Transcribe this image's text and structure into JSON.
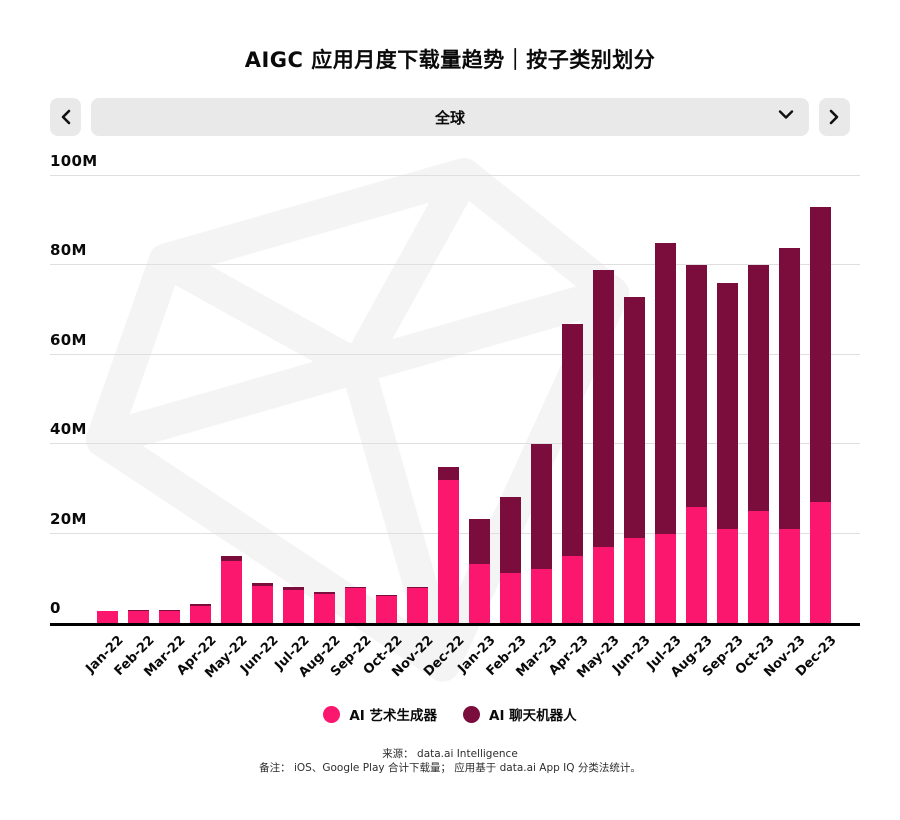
{
  "title": "AIGC 应用月度下载量趋势｜按子类别划分",
  "controls": {
    "region_value": "全球",
    "icons": [
      "chevron-left",
      "chevron-down",
      "chevron-right"
    ]
  },
  "chart_data": {
    "type": "bar",
    "stacked": true,
    "title": "AIGC 应用月度下载量趋势｜按子类别划分",
    "unit": "downloads (millions)",
    "ylim": [
      0,
      100
    ],
    "yticks": [
      "0",
      "20M",
      "40M",
      "60M",
      "80M",
      "100M"
    ],
    "grid": true,
    "legend_position": "bottom",
    "categories": [
      "Jan-22",
      "Feb-22",
      "Mar-22",
      "Apr-22",
      "May-22",
      "Jun-22",
      "Jul-22",
      "Aug-22",
      "Sep-22",
      "Oct-22",
      "Nov-22",
      "Dec-22",
      "Jan-23",
      "Feb-23",
      "Mar-23",
      "Apr-23",
      "May-23",
      "Jun-23",
      "Jul-23",
      "Aug-23",
      "Sep-23",
      "Oct-23",
      "Nov-23",
      "Dec-23"
    ],
    "series": [
      {
        "name": "AI 艺术生成器",
        "color": "#fb176e",
        "values": [
          2.7,
          2.6,
          2.6,
          3.7,
          13.8,
          8.2,
          7.4,
          6.5,
          7.9,
          6.0,
          7.9,
          32.0,
          13.2,
          11.1,
          12.0,
          15.0,
          17.0,
          19.0,
          20.0,
          26.0,
          21.0,
          25.0,
          21.0,
          27.0
        ]
      },
      {
        "name": "AI 聊天机器人",
        "color": "#7b0d3c",
        "values": [
          0.1,
          0.4,
          0.3,
          0.5,
          1.2,
          0.7,
          0.6,
          0.5,
          0.2,
          0.2,
          0.2,
          3.0,
          10.0,
          17.0,
          28.0,
          52.0,
          62.0,
          54.0,
          65.0,
          54.0,
          55.0,
          55.0,
          63.0,
          66.0
        ]
      }
    ]
  },
  "footer": {
    "source": "来源： data.ai Intelligence",
    "note": "备注： iOS、Google Play 合计下载量； 应用基于 data.ai App IQ 分类法统计。"
  }
}
